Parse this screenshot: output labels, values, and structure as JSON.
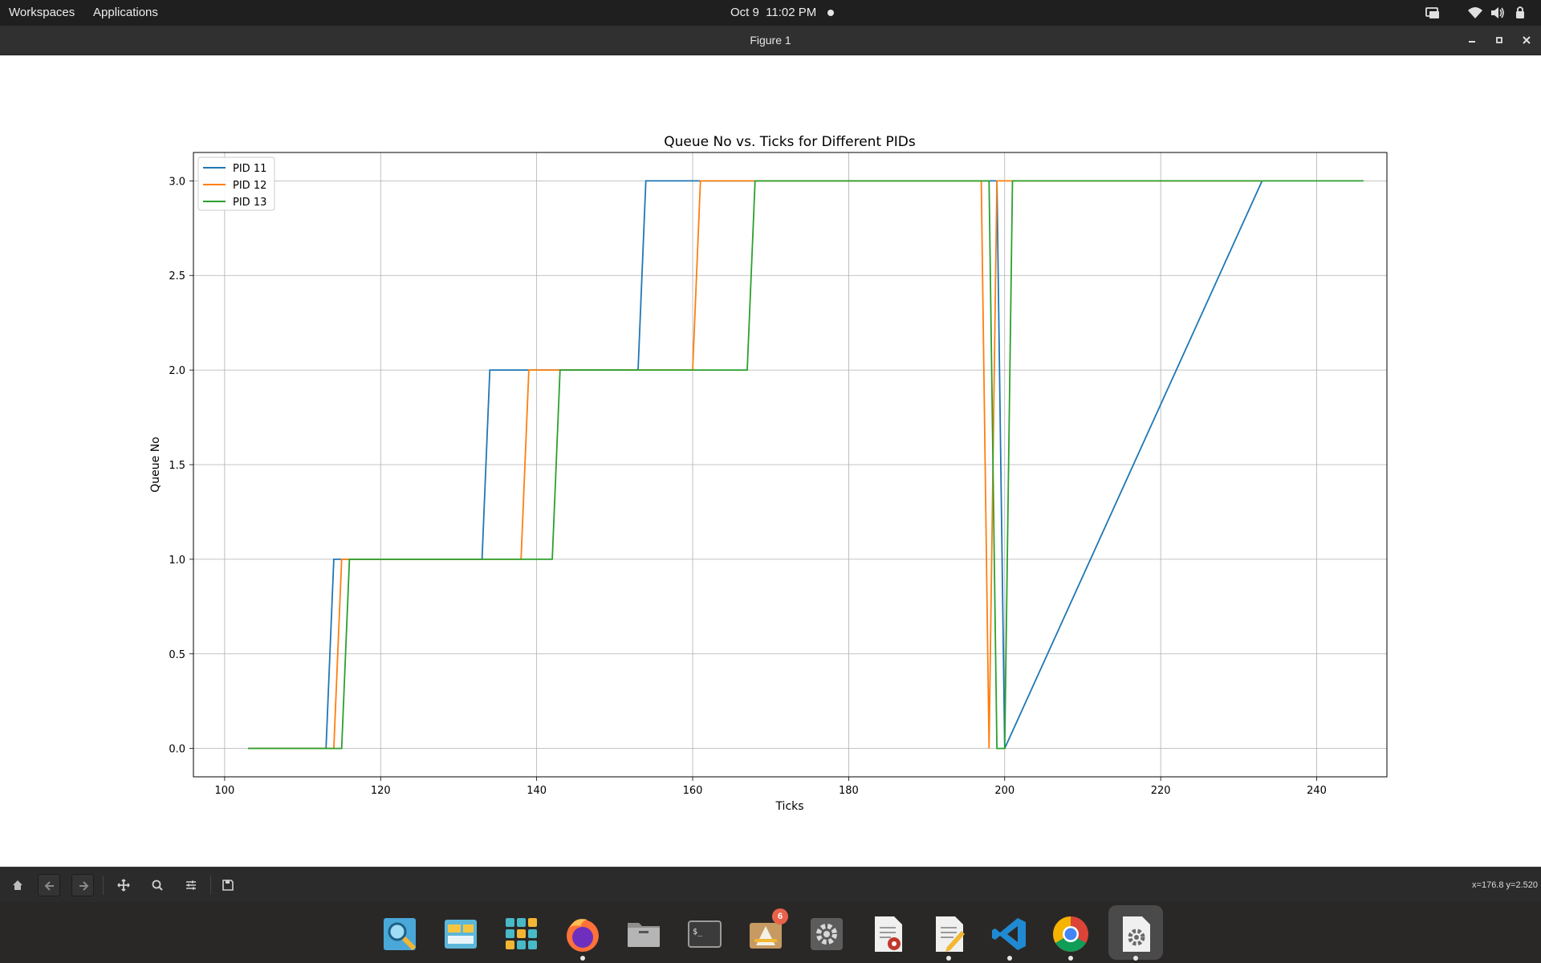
{
  "topbar": {
    "workspaces": "Workspaces",
    "applications": "Applications",
    "clock": "Oct 9  11:02 PM",
    "tray_icons": [
      "display-icon",
      "wifi-icon",
      "volume-icon",
      "power-icon"
    ]
  },
  "window": {
    "title": "Figure 1",
    "controls": [
      "minimize-icon",
      "maximize-icon",
      "close-icon"
    ]
  },
  "toolbar": {
    "tools": [
      "home-icon",
      "back-icon",
      "forward-icon",
      "pan-icon",
      "zoom-icon",
      "configure-subplots-icon",
      "save-icon"
    ],
    "coords": "x=176.8 y=2.520"
  },
  "dock": {
    "apps": [
      {
        "name": "search-app",
        "running": false
      },
      {
        "name": "file-manager-app",
        "running": false
      },
      {
        "name": "app-grid",
        "running": false
      },
      {
        "name": "firefox-app",
        "running": true
      },
      {
        "name": "files-app",
        "running": false
      },
      {
        "name": "terminal-app",
        "running": false
      },
      {
        "name": "software-center-app",
        "running": false,
        "badge": "6"
      },
      {
        "name": "settings-app",
        "running": false
      },
      {
        "name": "document-viewer-app",
        "running": false
      },
      {
        "name": "text-editor-app",
        "running": true
      },
      {
        "name": "vscode-app",
        "running": true
      },
      {
        "name": "chrome-app",
        "running": true
      },
      {
        "name": "settings-active-app",
        "running": true,
        "active": true
      }
    ]
  },
  "chart_data": {
    "type": "line",
    "title": "Queue No vs. Ticks for Different PIDs",
    "xlabel": "Ticks",
    "ylabel": "Queue No",
    "xlim": [
      96,
      249
    ],
    "ylim": [
      -0.15,
      3.15
    ],
    "xticks": [
      100,
      120,
      140,
      160,
      180,
      200,
      220,
      240
    ],
    "yticks": [
      0.0,
      0.5,
      1.0,
      1.5,
      2.0,
      2.5,
      3.0
    ],
    "xtick_labels": [
      "100",
      "120",
      "140",
      "160",
      "180",
      "200",
      "220",
      "240"
    ],
    "ytick_labels": [
      "0.0",
      "0.5",
      "1.0",
      "1.5",
      "2.0",
      "2.5",
      "3.0"
    ],
    "grid": true,
    "legend": "upper left",
    "series": [
      {
        "name": "PID 11",
        "color": "#1f77b4",
        "x": [
          103,
          113,
          114,
          133,
          134,
          153,
          154,
          199,
          200,
          233
        ],
        "y": [
          0,
          0,
          1,
          1,
          2,
          2,
          3,
          3,
          0,
          3
        ]
      },
      {
        "name": "PID 12",
        "color": "#ff7f0e",
        "x": [
          103,
          114,
          115,
          138,
          139,
          160,
          161,
          197,
          198,
          199,
          233
        ],
        "y": [
          0,
          0,
          1,
          1,
          2,
          2,
          3,
          3,
          0,
          3,
          3
        ]
      },
      {
        "name": "PID 13",
        "color": "#2ca02c",
        "x": [
          103,
          115,
          116,
          142,
          143,
          167,
          168,
          198,
          199,
          200,
          201,
          246
        ],
        "y": [
          0,
          0,
          1,
          1,
          2,
          2,
          3,
          3,
          0,
          0,
          3,
          3
        ]
      }
    ]
  }
}
